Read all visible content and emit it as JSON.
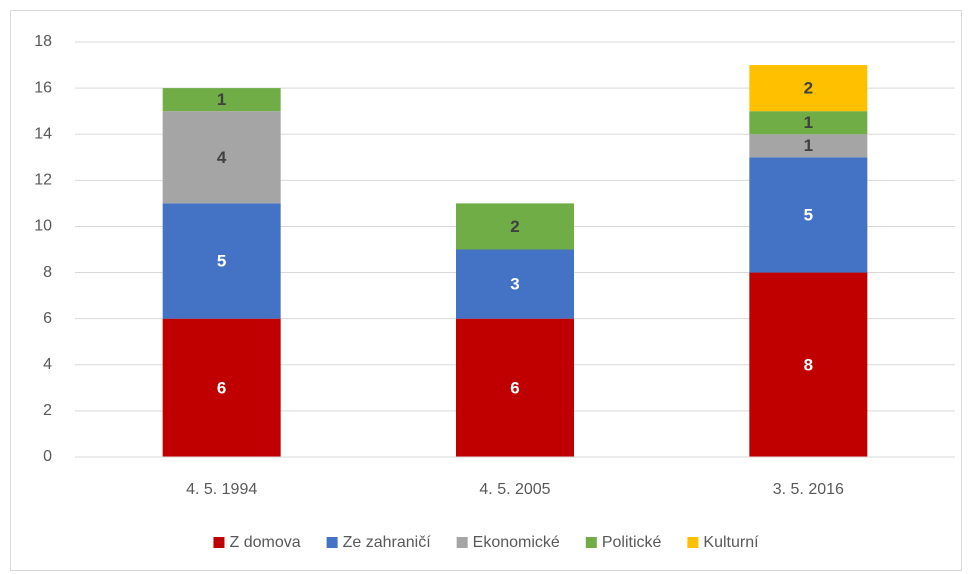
{
  "chart_data": {
    "type": "stacked_bar",
    "categories": [
      "4. 5. 1994",
      "4. 5. 2005",
      "3. 5. 2016"
    ],
    "series": [
      {
        "name": "Z domova",
        "color": "#c00000",
        "values": [
          6,
          6,
          8
        ]
      },
      {
        "name": "Ze zahraničí",
        "color": "#4472c4",
        "values": [
          5,
          3,
          5
        ]
      },
      {
        "name": "Ekonomické",
        "color": "#a5a5a5",
        "values": [
          4,
          null,
          1
        ]
      },
      {
        "name": "Politické",
        "color": "#70ad47",
        "values": [
          1,
          2,
          1
        ]
      },
      {
        "name": "Kulturní",
        "color": "#ffc000",
        "values": [
          null,
          null,
          2
        ]
      }
    ],
    "ylim": [
      0,
      18
    ],
    "yticks": [
      0,
      2,
      4,
      6,
      8,
      10,
      12,
      14,
      16,
      18
    ],
    "grid": true,
    "legend": "bottom"
  }
}
